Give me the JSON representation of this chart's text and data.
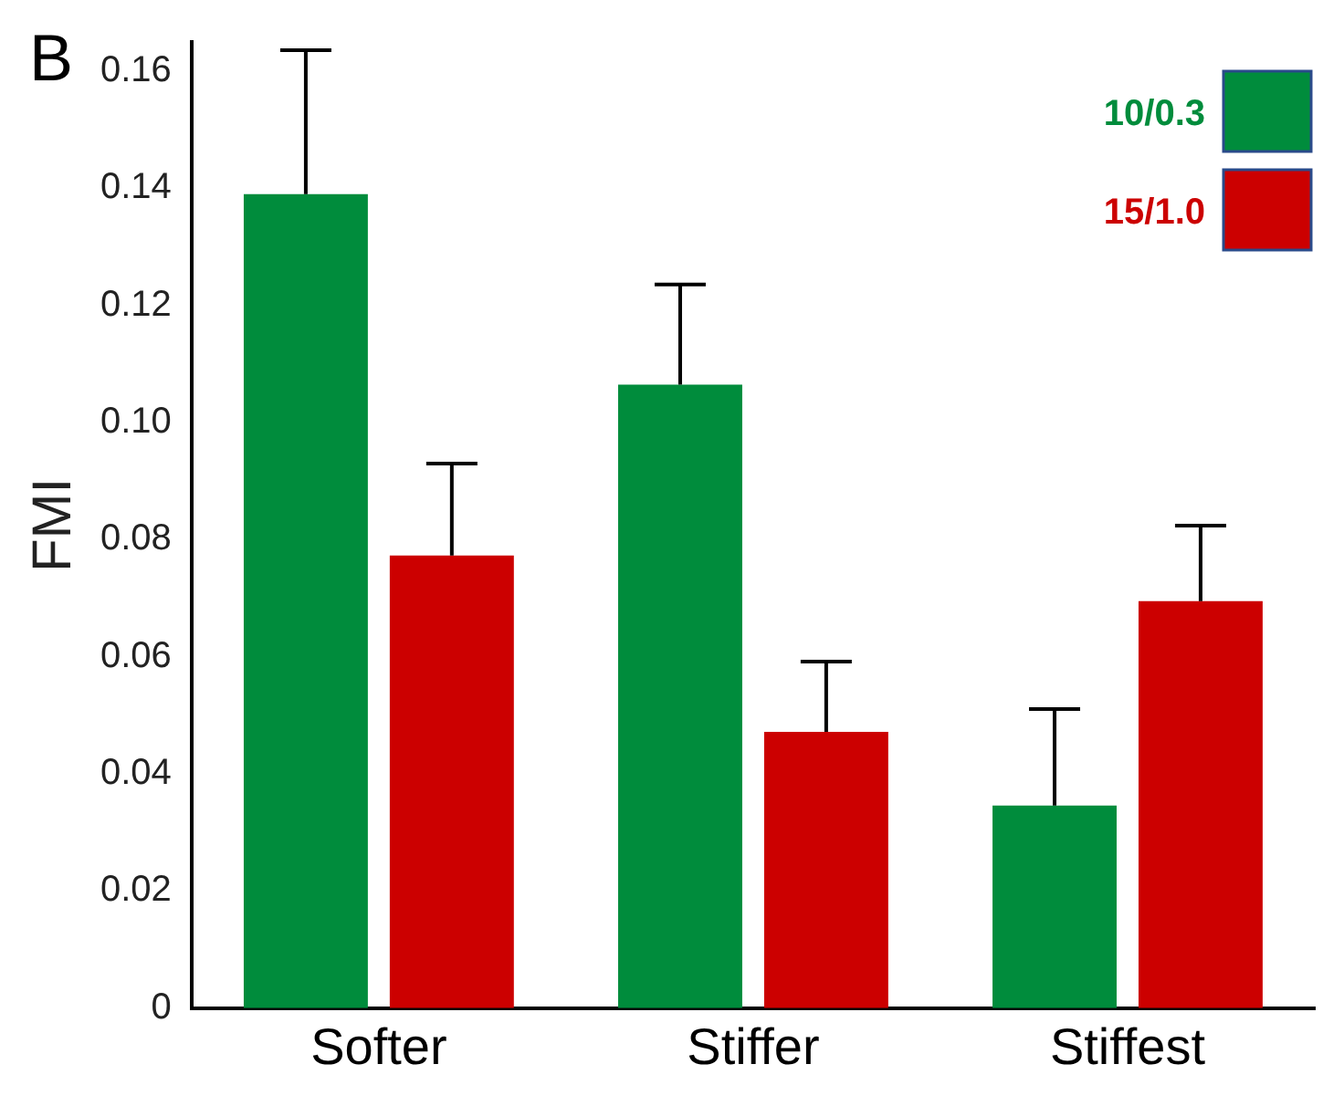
{
  "chart_data": {
    "type": "bar",
    "ylabel": "FMI",
    "categories": [
      "Softer",
      "Stiffer",
      "Stiffest"
    ],
    "series": [
      {
        "name": "10/0.3",
        "color": "#008c3c",
        "values": [
          0.139,
          0.1065,
          0.0346
        ],
        "errors": [
          [
            0.139,
            0.1636
          ],
          [
            0.1065,
            0.1236
          ],
          [
            0.0346,
            0.0511
          ]
        ]
      },
      {
        "name": "15/1.0",
        "color": "#cc0000",
        "values": [
          0.0773,
          0.0472,
          0.0695
        ],
        "errors": [
          [
            0.0773,
            0.093
          ],
          [
            0.0472,
            0.0592
          ],
          [
            0.0695,
            0.0824
          ]
        ]
      }
    ],
    "ylim": [
      0,
      0.165
    ],
    "yticks": [
      0,
      0.02,
      0.04,
      0.06,
      0.08,
      {
        "value": 0.1,
        "label": "0.10"
      },
      0.12,
      0.14,
      0.16
    ],
    "grid": false,
    "legend": "top right",
    "annotations": [
      "B"
    ]
  }
}
